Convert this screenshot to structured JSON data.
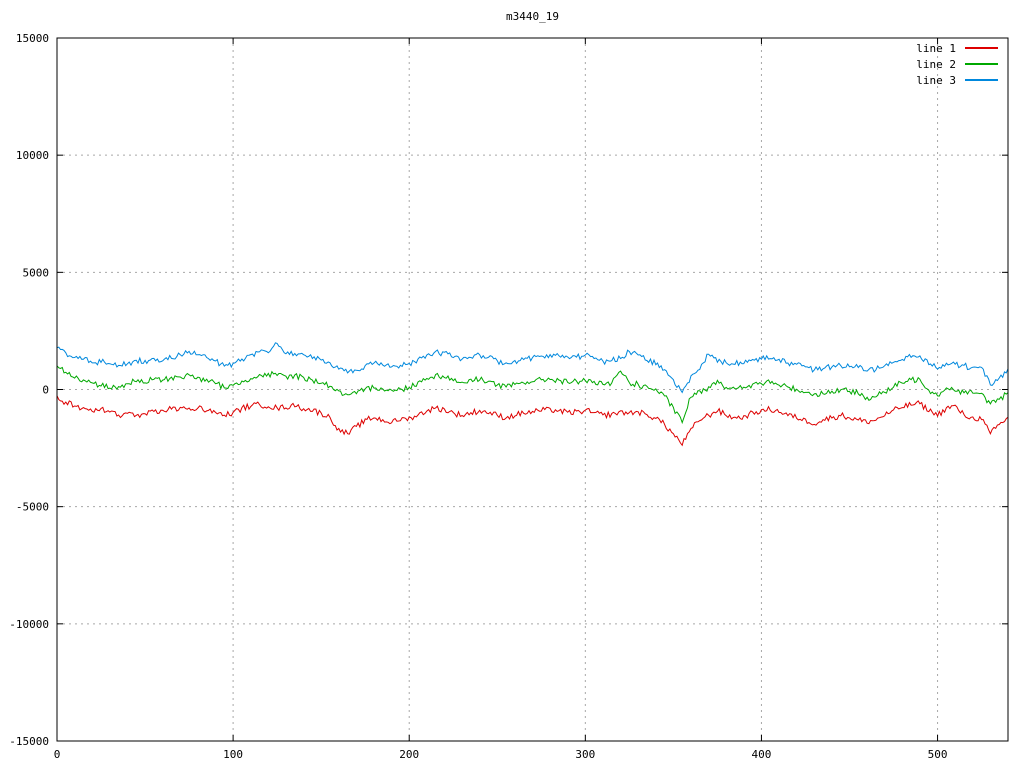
{
  "window": {
    "title": "m3440_19"
  },
  "colors": {
    "background": "#ffffff",
    "border": "#000000",
    "grid": "#a8a8a8",
    "tick_label": "#000000",
    "line1": "#dd0000",
    "line2": "#00a800",
    "line3": "#0088dd"
  },
  "chart_data": {
    "type": "line",
    "title": "m3440_19",
    "xlabel": "",
    "ylabel": "",
    "xlim": [
      0,
      540
    ],
    "ylim": [
      -15000,
      15000
    ],
    "xticks": [
      0,
      100,
      200,
      300,
      400,
      500
    ],
    "yticks": [
      -15000,
      -10000,
      -5000,
      0,
      5000,
      10000,
      15000
    ],
    "grid": true,
    "legend_position": "top-right-inside",
    "x_step": 5,
    "noise_amplitude": 130,
    "series": [
      {
        "name": "line 1",
        "color": "#dd0000",
        "values": [
          -300,
          -550,
          -700,
          -800,
          -900,
          -850,
          -950,
          -1100,
          -1000,
          -1100,
          -1050,
          -950,
          -900,
          -850,
          -800,
          -750,
          -800,
          -900,
          -1000,
          -1100,
          -1000,
          -800,
          -700,
          -650,
          -700,
          -800,
          -750,
          -700,
          -800,
          -900,
          -1000,
          -1200,
          -1700,
          -1900,
          -1600,
          -1300,
          -1200,
          -1300,
          -1400,
          -1300,
          -1200,
          -1100,
          -900,
          -800,
          -850,
          -1000,
          -1100,
          -1000,
          -900,
          -1000,
          -1100,
          -1200,
          -1100,
          -1000,
          -950,
          -900,
          -850,
          -900,
          -1000,
          -950,
          -900,
          -1000,
          -1100,
          -1050,
          -950,
          -1000,
          -950,
          -1100,
          -1200,
          -1500,
          -1900,
          -2350,
          -1700,
          -1300,
          -1100,
          -900,
          -1100,
          -1200,
          -1150,
          -1000,
          -900,
          -850,
          -950,
          -1100,
          -1200,
          -1300,
          -1450,
          -1300,
          -1200,
          -1100,
          -1200,
          -1300,
          -1400,
          -1300,
          -1100,
          -900,
          -750,
          -650,
          -600,
          -900,
          -1100,
          -800,
          -700,
          -1100,
          -1200,
          -1250,
          -1900,
          -1500,
          -1200
        ]
      },
      {
        "name": "line 2",
        "color": "#00a800",
        "values": [
          1000,
          700,
          500,
          400,
          300,
          150,
          100,
          100,
          250,
          350,
          300,
          450,
          400,
          500,
          550,
          600,
          500,
          400,
          250,
          100,
          150,
          350,
          500,
          600,
          650,
          600,
          550,
          600,
          500,
          400,
          300,
          150,
          -100,
          -250,
          -200,
          0,
          100,
          50,
          -50,
          0,
          100,
          300,
          500,
          600,
          550,
          400,
          300,
          400,
          450,
          350,
          200,
          100,
          200,
          300,
          350,
          400,
          450,
          400,
          300,
          350,
          400,
          300,
          200,
          250,
          800,
          300,
          200,
          100,
          0,
          -300,
          -800,
          -1400,
          -300,
          -100,
          100,
          400,
          100,
          0,
          100,
          200,
          250,
          300,
          200,
          100,
          0,
          -100,
          -200,
          -150,
          -100,
          0,
          -100,
          -150,
          -350,
          -300,
          -100,
          100,
          300,
          400,
          450,
          0,
          -250,
          100,
          -50,
          -100,
          -150,
          -200,
          -600,
          -400,
          -150
        ]
      },
      {
        "name": "line 3",
        "color": "#0088dd",
        "values": [
          1800,
          1550,
          1400,
          1300,
          1150,
          1200,
          1100,
          1000,
          1100,
          1250,
          1200,
          1300,
          1250,
          1350,
          1500,
          1600,
          1500,
          1350,
          1200,
          1000,
          1100,
          1300,
          1500,
          1600,
          1550,
          1950,
          1500,
          1550,
          1450,
          1350,
          1250,
          1100,
          850,
          750,
          800,
          1000,
          1100,
          1050,
          950,
          1000,
          1100,
          1300,
          1500,
          1600,
          1550,
          1400,
          1300,
          1400,
          1450,
          1350,
          1200,
          1100,
          1200,
          1300,
          1350,
          1400,
          1500,
          1450,
          1350,
          1400,
          1450,
          1300,
          1200,
          1250,
          1350,
          1650,
          1450,
          1250,
          1100,
          800,
          400,
          -150,
          550,
          900,
          1500,
          1200,
          1150,
          1100,
          1150,
          1250,
          1300,
          1350,
          1250,
          1150,
          1050,
          950,
          850,
          900,
          950,
          1050,
          1000,
          950,
          800,
          850,
          1000,
          1150,
          1300,
          1400,
          1450,
          1100,
          900,
          1150,
          1050,
          1000,
          950,
          900,
          200,
          500,
          850
        ]
      }
    ]
  }
}
